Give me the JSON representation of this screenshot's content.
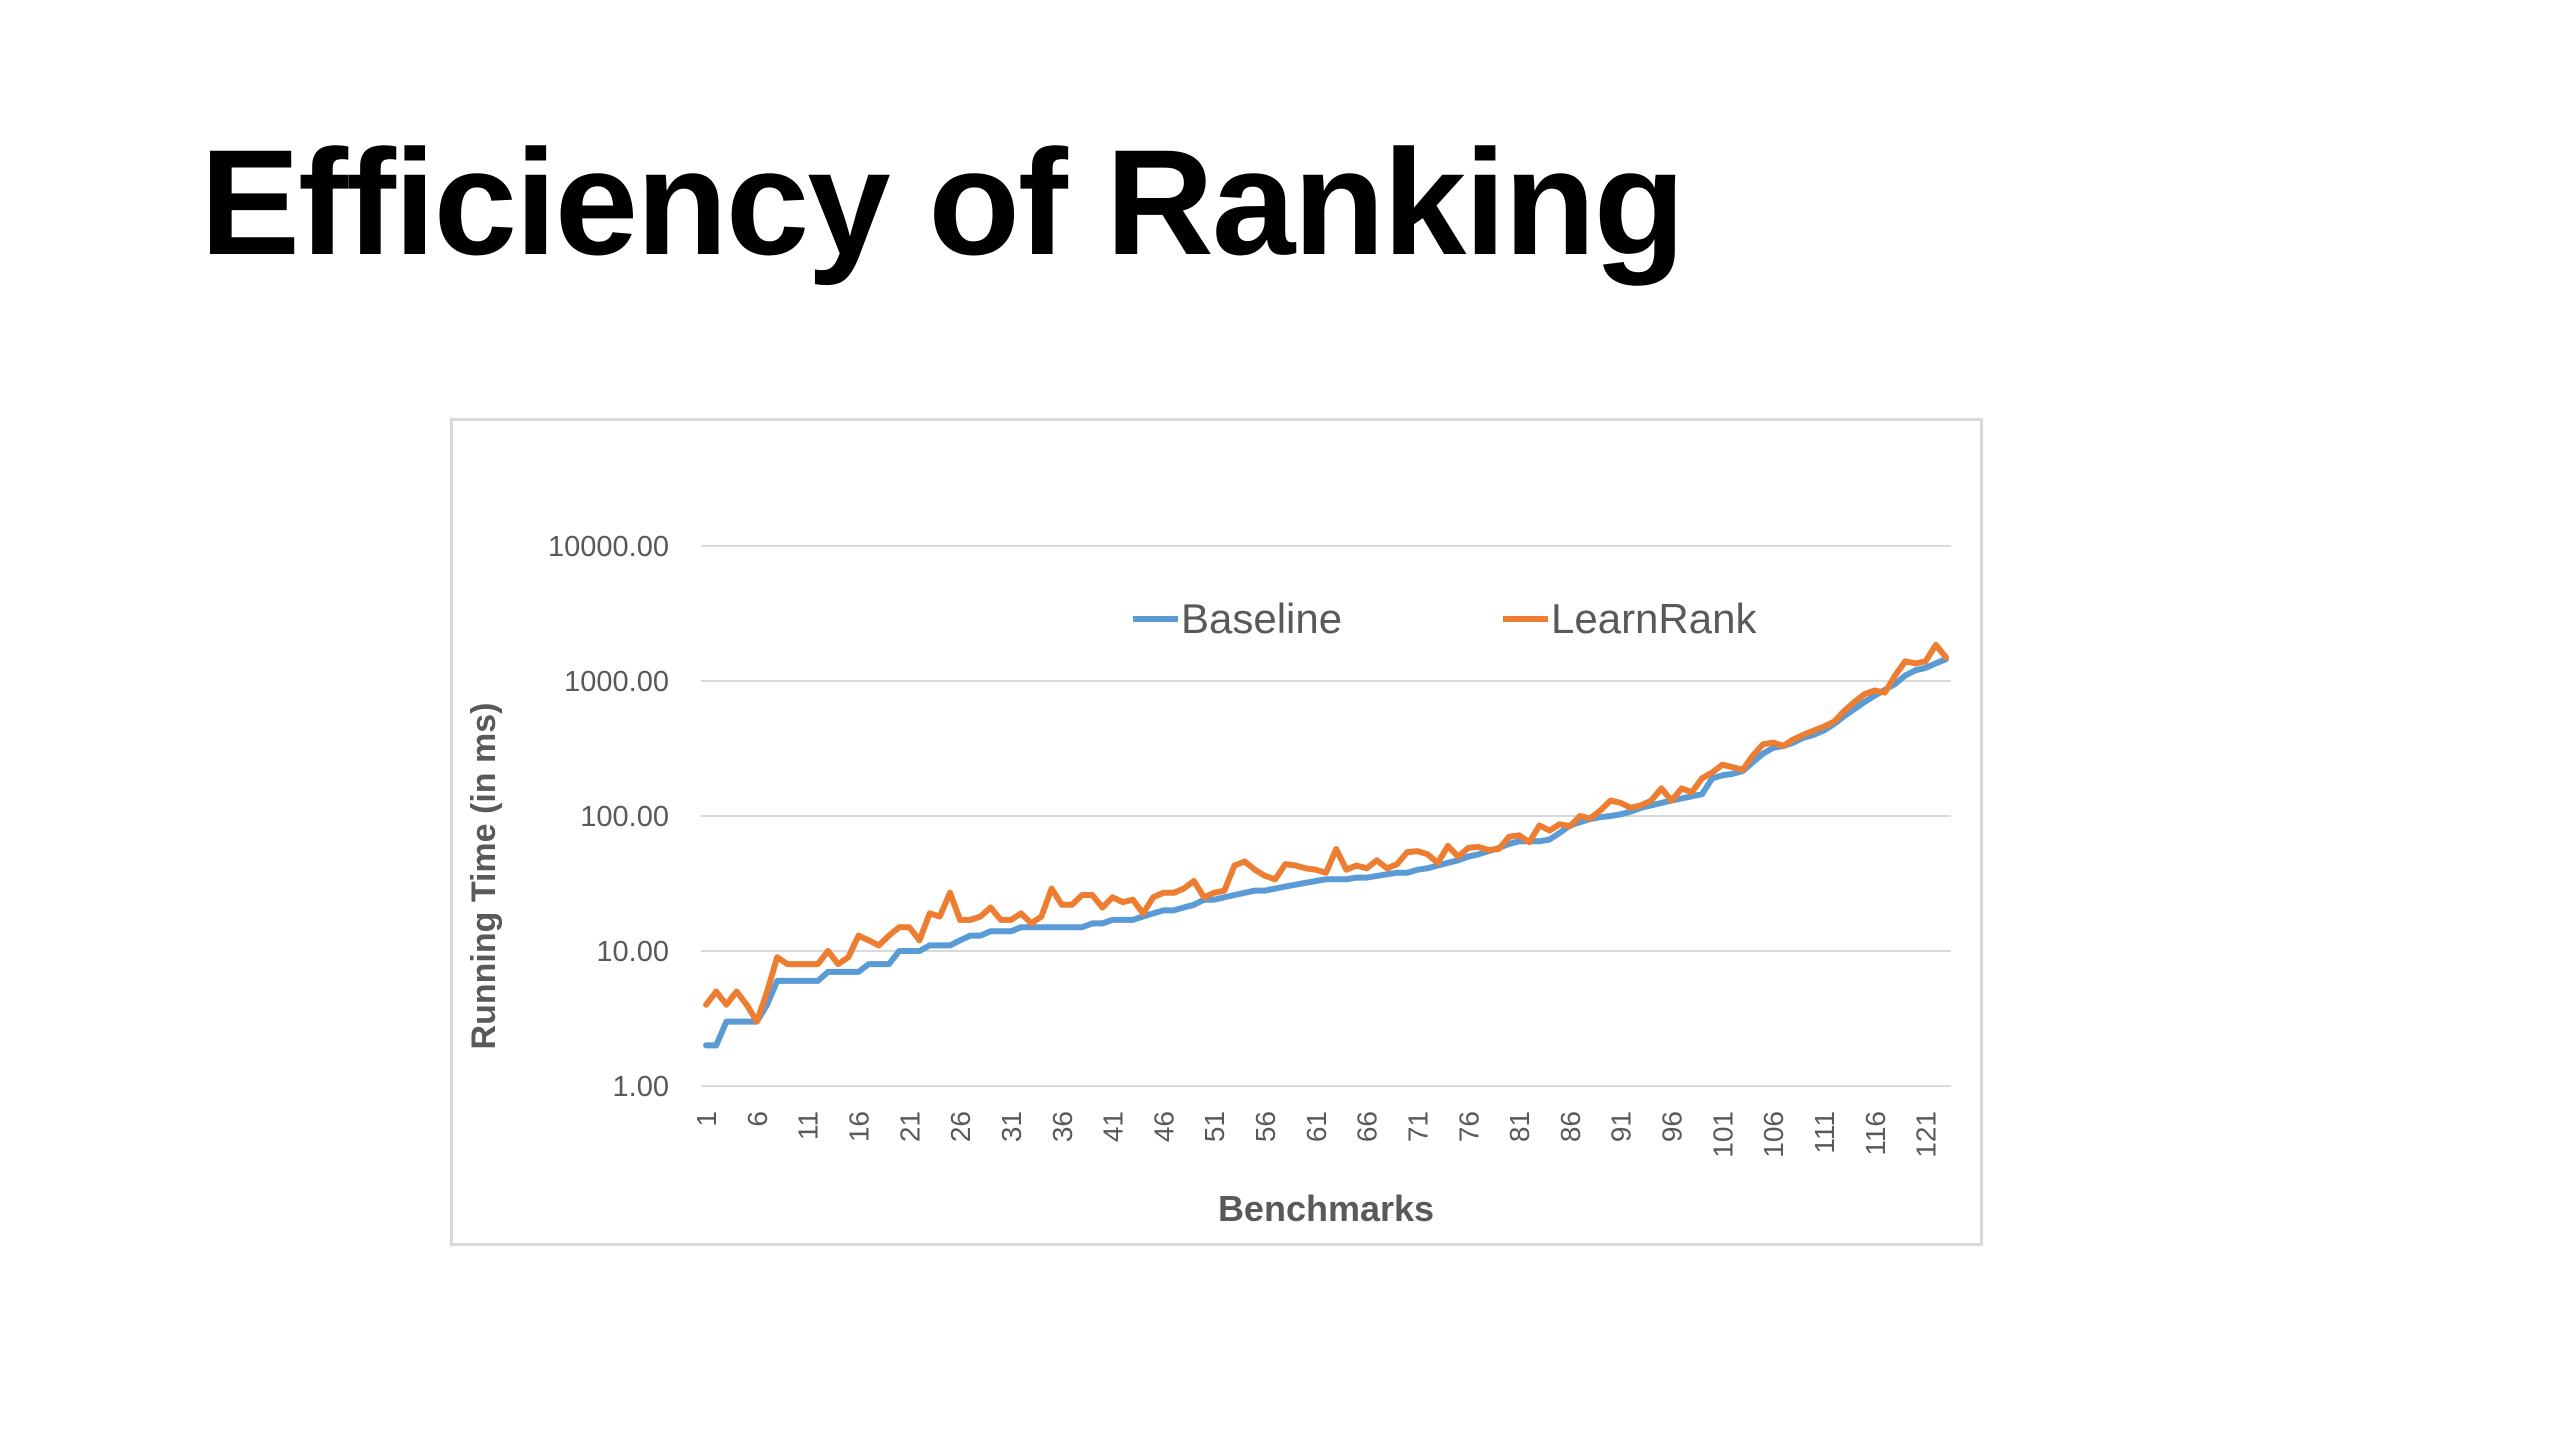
{
  "slide": {
    "title": "Efficiency of Ranking"
  },
  "chart_data": {
    "type": "line",
    "title": "",
    "xlabel": "Benchmarks",
    "ylabel": "Running Time (in ms)",
    "yscale": "log10",
    "ylim": [
      1,
      10000
    ],
    "ytick_labels": [
      "1.00",
      "10.00",
      "100.00",
      "1000.00",
      "10000.00"
    ],
    "ytick_values": [
      1,
      10,
      100,
      1000,
      10000
    ],
    "xtick_labels": [
      "1",
      "6",
      "11",
      "16",
      "21",
      "26",
      "31",
      "36",
      "41",
      "46",
      "51",
      "56",
      "61",
      "66",
      "71",
      "76",
      "81",
      "86",
      "91",
      "96",
      "101",
      "106",
      "111",
      "116",
      "121"
    ],
    "x": [
      1,
      2,
      3,
      4,
      5,
      6,
      7,
      8,
      9,
      10,
      11,
      12,
      13,
      14,
      15,
      16,
      17,
      18,
      19,
      20,
      21,
      22,
      23,
      24,
      25,
      26,
      27,
      28,
      29,
      30,
      31,
      32,
      33,
      34,
      35,
      36,
      37,
      38,
      39,
      40,
      41,
      42,
      43,
      44,
      45,
      46,
      47,
      48,
      49,
      50,
      51,
      52,
      53,
      54,
      55,
      56,
      57,
      58,
      59,
      60,
      61,
      62,
      63,
      64,
      65,
      66,
      67,
      68,
      69,
      70,
      71,
      72,
      73,
      74,
      75,
      76,
      77,
      78,
      79,
      80,
      81,
      82,
      83,
      84,
      85,
      86,
      87,
      88,
      89,
      90,
      91,
      92,
      93,
      94,
      95,
      96,
      97,
      98,
      99,
      100,
      101,
      102,
      103,
      104,
      105,
      106,
      107,
      108,
      109,
      110,
      111,
      112,
      113,
      114,
      115,
      116,
      117,
      118,
      119,
      120,
      121,
      122,
      123
    ],
    "grid": true,
    "legend_position": "top",
    "series": [
      {
        "name": "Baseline",
        "color": "#5b9bd5",
        "values": [
          2,
          2,
          3,
          3,
          3,
          3,
          4,
          6,
          6,
          6,
          6,
          6,
          7,
          7,
          7,
          7,
          8,
          8,
          8,
          10,
          10,
          10,
          11,
          11,
          11,
          12,
          13,
          13,
          14,
          14,
          14,
          15,
          15,
          15,
          15,
          15,
          15,
          15,
          16,
          16,
          17,
          17,
          17,
          18,
          19,
          20,
          20,
          21,
          22,
          24,
          24,
          25,
          26,
          27,
          28,
          28,
          29,
          30,
          31,
          32,
          33,
          34,
          34,
          34,
          35,
          35,
          36,
          37,
          38,
          38,
          40,
          41,
          43,
          45,
          47,
          50,
          52,
          55,
          58,
          62,
          65,
          65,
          65,
          67,
          75,
          85,
          90,
          95,
          98,
          100,
          103,
          108,
          115,
          120,
          125,
          130,
          135,
          140,
          145,
          190,
          200,
          205,
          215,
          250,
          290,
          320,
          330,
          350,
          380,
          400,
          430,
          480,
          550,
          620,
          700,
          780,
          860,
          950,
          1100,
          1200,
          1250,
          1350,
          1450
        ]
      },
      {
        "name": "LearnRank",
        "color": "#ed7d31",
        "values": [
          4,
          5,
          4,
          5,
          4,
          3,
          5,
          9,
          8,
          8,
          8,
          8,
          10,
          8,
          9,
          13,
          12,
          11,
          13,
          15,
          15,
          12,
          19,
          18,
          27,
          17,
          17,
          18,
          21,
          17,
          17,
          19,
          16,
          18,
          29,
          22,
          22,
          26,
          26,
          21,
          25,
          23,
          24,
          19,
          25,
          27,
          27,
          29,
          33,
          25,
          27,
          28,
          43,
          46,
          40,
          36,
          34,
          44,
          43,
          41,
          40,
          38,
          57,
          40,
          43,
          41,
          47,
          41,
          44,
          54,
          55,
          52,
          45,
          60,
          50,
          58,
          59,
          56,
          57,
          70,
          72,
          64,
          85,
          78,
          87,
          84,
          100,
          96,
          110,
          130,
          125,
          115,
          120,
          130,
          160,
          130,
          160,
          150,
          190,
          210,
          240,
          230,
          220,
          280,
          340,
          350,
          330,
          370,
          400,
          430,
          460,
          500,
          600,
          700,
          800,
          850,
          820,
          1100,
          1400,
          1350,
          1400,
          1850,
          1500
        ]
      }
    ]
  }
}
